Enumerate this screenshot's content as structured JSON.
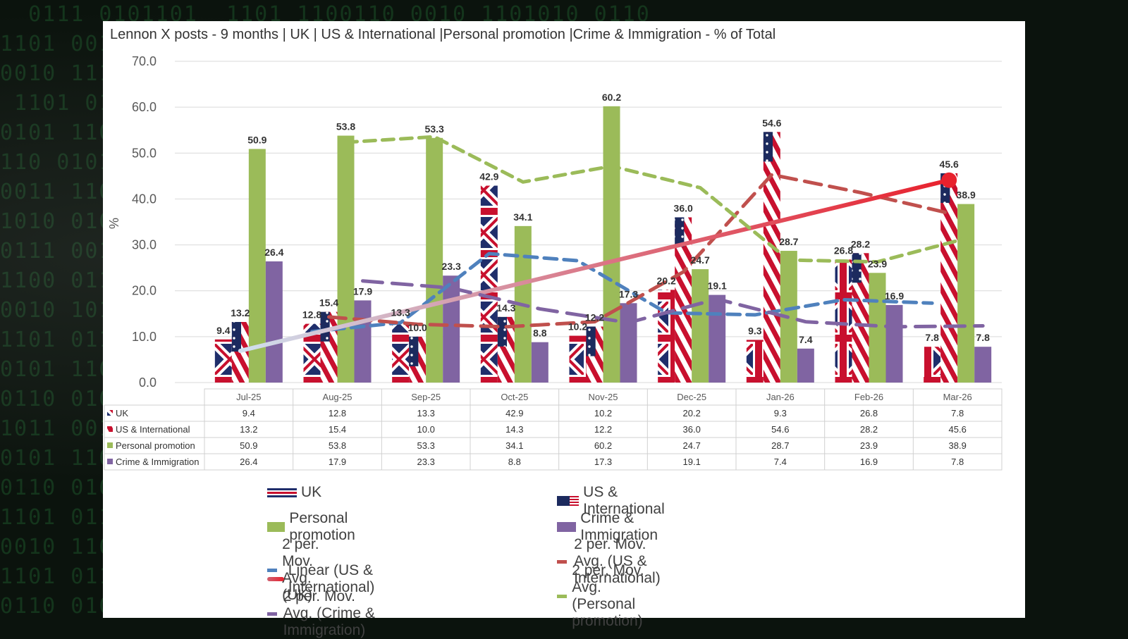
{
  "colors": {
    "uk": "#1f2e6b",
    "us": "#c8102e",
    "personal": "#9bbb59",
    "crime": "#8064a2",
    "ma_uk": "#4f81bd",
    "ma_us": "#c0504d",
    "ma_personal": "#9bbb59",
    "ma_crime": "#8064a2",
    "linear": "#e8212d"
  },
  "chart_data": {
    "type": "bar",
    "title": "Lennon X posts - 9 months | UK | US & International |Personal promotion |Crime & Immigration - % of Total",
    "ylabel": "%",
    "xlabel": "",
    "ylim": [
      0,
      70
    ],
    "yticks": [
      "0.0",
      "10.0",
      "20.0",
      "30.0",
      "40.0",
      "50.0",
      "60.0",
      "70.0"
    ],
    "grid": true,
    "legend_position": "bottom",
    "categories": [
      "Jul-25",
      "Aug-25",
      "Sep-25",
      "Oct-25",
      "Nov-25",
      "Dec-25",
      "Jan-26",
      "Feb-26",
      "Mar-26"
    ],
    "series": [
      {
        "name": "UK",
        "key": "uk",
        "values": [
          9.4,
          12.8,
          13.3,
          42.9,
          10.2,
          20.2,
          9.3,
          26.8,
          7.8
        ],
        "labels": [
          "9.4",
          "12.8",
          "13.3",
          "42.9",
          "10.2",
          "20.2",
          "9.3",
          "26.8",
          "7.8"
        ]
      },
      {
        "name": "US & International",
        "key": "us",
        "values": [
          13.2,
          15.4,
          10.0,
          14.3,
          12.2,
          36.0,
          54.6,
          28.2,
          45.6
        ],
        "labels": [
          "13.2",
          "15.4",
          "10.0",
          "14.3",
          "12.2",
          "36.0",
          "54.6",
          "28.2",
          "45.6"
        ]
      },
      {
        "name": "Personal promotion",
        "key": "personal",
        "values": [
          50.9,
          53.8,
          53.3,
          34.1,
          60.2,
          24.7,
          28.7,
          23.9,
          38.9
        ],
        "labels": [
          "50.9",
          "53.8",
          "53.3",
          "34.1",
          "60.2",
          "24.7",
          "28.7",
          "23.9",
          "38.9"
        ]
      },
      {
        "name": "Crime & Immigration",
        "key": "crime",
        "values": [
          26.4,
          17.9,
          23.3,
          8.8,
          17.3,
          19.1,
          7.4,
          16.9,
          7.8
        ],
        "labels": [
          "26.4",
          "17.9",
          "23.3",
          "8.8",
          "17.3",
          "19.1",
          "7.4",
          "16.9",
          "7.8"
        ]
      }
    ],
    "trendlines": [
      {
        "name": "2 per. Mov. Avg. (UK)",
        "type": "moving_average",
        "period": 2,
        "of": "uk"
      },
      {
        "name": "2 per. Mov. Avg. (US & International)",
        "type": "moving_average",
        "period": 2,
        "of": "us"
      },
      {
        "name": "Linear (US & International)",
        "type": "linear",
        "of": "us"
      },
      {
        "name": "2 per. Mov. Avg. (Personal promotion)",
        "type": "moving_average",
        "period": 2,
        "of": "personal"
      },
      {
        "name": "2 per. Mov. Avg. (Crime & Immigration)",
        "type": "moving_average",
        "period": 2,
        "of": "crime"
      }
    ],
    "data_table": true
  },
  "legend": [
    {
      "label": "UK",
      "kind": "uk"
    },
    {
      "label": "US & International",
      "kind": "us"
    },
    {
      "label": "Personal promotion",
      "kind": "personal"
    },
    {
      "label": "Crime & Immigration",
      "kind": "crime"
    },
    {
      "label": "2 per. Mov. Avg. (UK)",
      "kind": "ma_uk"
    },
    {
      "label": "2 per. Mov. Avg. (US & International)",
      "kind": "ma_us"
    },
    {
      "label": "Linear (US & International)",
      "kind": "linear"
    },
    {
      "label": "2 per. Mov. Avg. (Personal promotion)",
      "kind": "ma_personal"
    },
    {
      "label": "2 per. Mov. Avg. (Crime & Immigration)",
      "kind": "ma_crime"
    }
  ]
}
